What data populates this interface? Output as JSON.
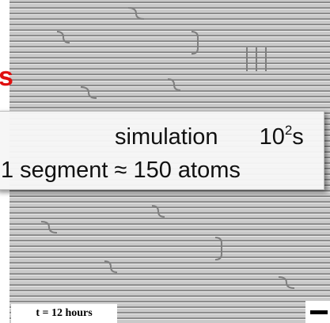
{
  "overlay": {
    "label": "simulation",
    "time_base": "10",
    "time_exponent": "2",
    "time_unit": "s",
    "segment_note": "1 segment ≈ 150 atoms"
  },
  "edge_text": "s",
  "time_label": "t = 12 hours"
}
